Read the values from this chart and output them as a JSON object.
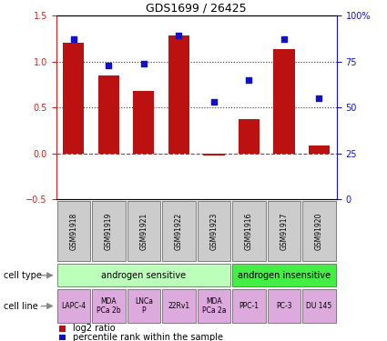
{
  "title": "GDS1699 / 26425",
  "samples": [
    "GSM91918",
    "GSM91919",
    "GSM91921",
    "GSM91922",
    "GSM91923",
    "GSM91916",
    "GSM91917",
    "GSM91920"
  ],
  "log2_ratio": [
    1.2,
    0.85,
    0.68,
    1.28,
    -0.02,
    0.37,
    1.13,
    0.09
  ],
  "percentile_rank": [
    87,
    73,
    74,
    89,
    53,
    65,
    87,
    55
  ],
  "bar_color": "#bb1111",
  "dot_color": "#1111cc",
  "ylim_left": [
    -0.5,
    1.5
  ],
  "ylim_right": [
    0,
    100
  ],
  "yticks_left": [
    -0.5,
    0,
    0.5,
    1.0,
    1.5
  ],
  "yticks_right": [
    0,
    25,
    50,
    75,
    100
  ],
  "hline_values": [
    0.0,
    0.5,
    1.0
  ],
  "hline_styles": [
    "--",
    ":",
    ":"
  ],
  "hline_colors": [
    "#cc2222",
    "#333333",
    "#333333"
  ],
  "cell_type_labels": [
    "androgen sensitive",
    "androgen insensitive"
  ],
  "cell_type_spans": [
    0,
    5
  ],
  "cell_type_colors": [
    "#bbffbb",
    "#44ee44"
  ],
  "cell_line_labels": [
    "LAPC-4",
    "MDA\nPCa 2b",
    "LNCa\nP",
    "22Rv1",
    "MDA\nPCa 2a",
    "PPC-1",
    "PC-3",
    "DU 145"
  ],
  "cell_line_color": "#ddaadd",
  "sample_label_bg": "#cccccc",
  "legend_red_label": "log2 ratio",
  "legend_blue_label": "percentile rank within the sample",
  "left_axis_color": "#cc2222",
  "right_axis_color": "#1111cc",
  "n_sensitive": 5,
  "n_insensitive": 3
}
